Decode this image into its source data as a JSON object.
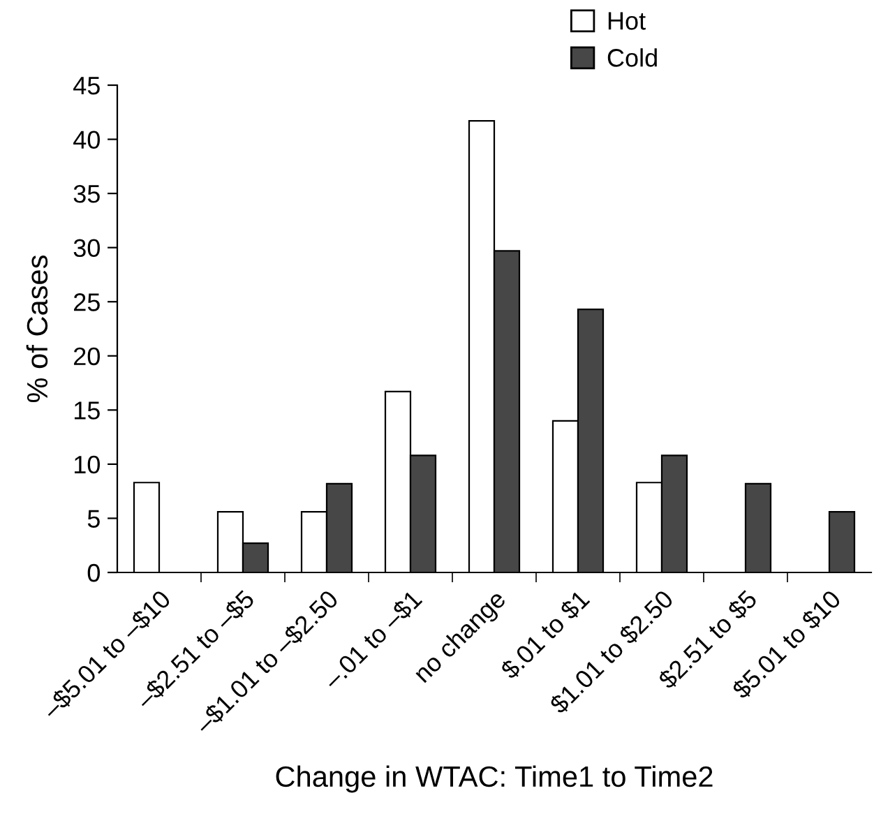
{
  "chart_data": {
    "type": "bar",
    "xlabel": "Change in WTAC: Time1 to Time2",
    "ylabel": "% of Cases",
    "categories": [
      "–$5.01 to –$10",
      "–$2.51 to –$5",
      "–$1.01 to –$2.50",
      "–.01 to –$1",
      "no change",
      "$.01 to $1",
      "$1.01 to $2.50",
      "$2.51 to $5",
      "$5.01 to $10"
    ],
    "series": [
      {
        "name": "Hot",
        "color": "#ffffff",
        "values": [
          8.3,
          5.6,
          5.6,
          16.7,
          41.7,
          14.0,
          8.3,
          null,
          null
        ]
      },
      {
        "name": "Cold",
        "color": "#474747",
        "values": [
          null,
          2.7,
          8.2,
          10.8,
          29.7,
          24.3,
          10.8,
          8.2,
          5.6
        ]
      }
    ],
    "ylim": [
      0,
      45
    ],
    "yticks": [
      0,
      5,
      10,
      15,
      20,
      25,
      30,
      35,
      40,
      45
    ],
    "grid": false,
    "legend": "top"
  }
}
